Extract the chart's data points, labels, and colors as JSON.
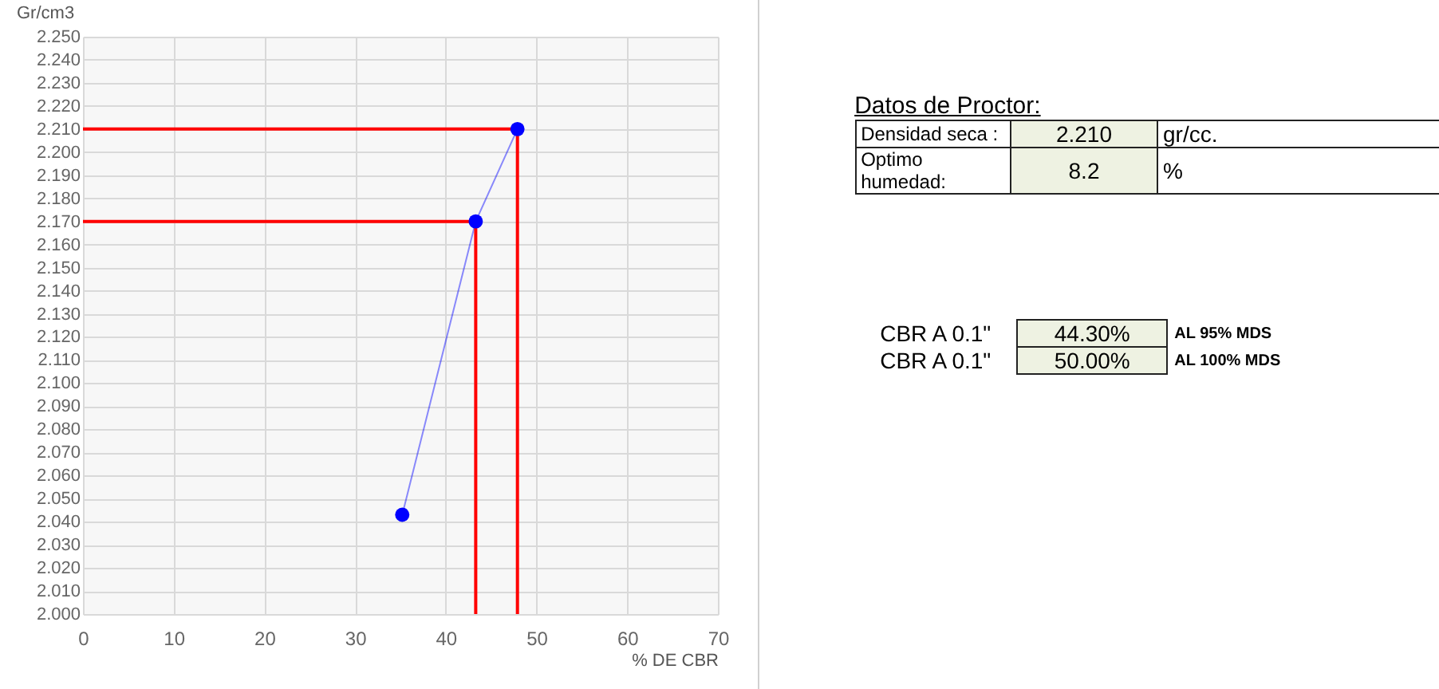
{
  "chart_data": [
    {
      "type": "line",
      "xlabel": "% DE CBR",
      "ylabel": "Gr/cm3",
      "marker": "circle",
      "grid": true,
      "xlim": [
        0,
        70
      ],
      "xticks": [
        0,
        10,
        20,
        30,
        40,
        50,
        60,
        70
      ],
      "ylim": [
        2.0,
        2.25
      ],
      "yticks": [
        {
          "value": 2.0,
          "label": "2.000"
        },
        {
          "value": 2.01,
          "label": "2.010"
        },
        {
          "value": 2.02,
          "label": "2.020"
        },
        {
          "value": 2.03,
          "label": "2.030"
        },
        {
          "value": 2.04,
          "label": "2.040"
        },
        {
          "value": 2.05,
          "label": "2.050"
        },
        {
          "value": 2.06,
          "label": "2.060"
        },
        {
          "value": 2.07,
          "label": "2.070"
        },
        {
          "value": 2.08,
          "label": "2.080"
        },
        {
          "value": 2.09,
          "label": "2.090"
        },
        {
          "value": 2.1,
          "label": "2.100"
        },
        {
          "value": 2.11,
          "label": "2.110"
        },
        {
          "value": 2.12,
          "label": "2.120"
        },
        {
          "value": 2.13,
          "label": "2.130"
        },
        {
          "value": 2.14,
          "label": "2.140"
        },
        {
          "value": 2.15,
          "label": "2.150"
        },
        {
          "value": 2.16,
          "label": "2.160"
        },
        {
          "value": 2.17,
          "label": "2.170"
        },
        {
          "value": 2.18,
          "label": "2.180"
        },
        {
          "value": 2.19,
          "label": "2.190"
        },
        {
          "value": 2.2,
          "label": "2.200"
        },
        {
          "value": 2.21,
          "label": "2.210"
        },
        {
          "value": 2.22,
          "label": "2.220"
        },
        {
          "value": 2.23,
          "label": "2.230"
        },
        {
          "value": 2.24,
          "label": "2.240"
        },
        {
          "value": 2.25,
          "label": "2.250"
        }
      ],
      "series": [
        {
          "color": "#0000ff",
          "x": [
            35.2,
            43.3,
            47.9
          ],
          "values": [
            2.043,
            2.17,
            2.21
          ]
        },
        {
          "type": "line",
          "marker": "none",
          "color": "#ff0000",
          "x": [
            0,
            47.9,
            47.9
          ],
          "values": [
            2.21,
            2.21,
            2.0
          ]
        },
        {
          "type": "line",
          "marker": "none",
          "color": "#ff0000",
          "x": [
            0,
            43.3,
            43.3
          ],
          "values": [
            2.17,
            2.17,
            2.0
          ]
        }
      ]
    },
    {
      "type": "other",
      "annotations": [
        "Datos de Proctor:",
        "Densidad seca  :",
        "2.210",
        "gr/cc.",
        "Optimo humedad:",
        "8.2",
        "%",
        "CBR A 0.1\"",
        "44.30%",
        "AL 95% MDS",
        "CBR A 0.1\"",
        "50.00%",
        "AL 100% MDS"
      ]
    }
  ]
}
